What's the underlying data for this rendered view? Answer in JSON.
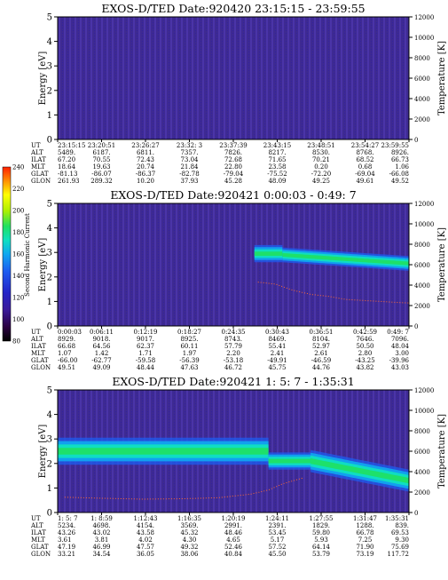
{
  "colorbar": {
    "label": "Second Harmonic Current",
    "ticks": [
      "240",
      "220",
      "200",
      "180",
      "160",
      "140",
      "120",
      "100",
      "80"
    ],
    "colors": [
      "#000000",
      "#2a0040",
      "#3a1a9a",
      "#2424c8",
      "#1e5cf0",
      "#10a8f0",
      "#10e0c0",
      "#20e060",
      "#b0f000",
      "#ffff00",
      "#ff9000",
      "#ff2000"
    ]
  },
  "row_labels": [
    "UT",
    "ALT",
    "ILAT",
    "MLT",
    "GLAT",
    "GLON"
  ],
  "chart_data": [
    {
      "type": "heatmap",
      "title": "EXOS-D/TED   Date:920420  23:15:15 - 23:59:55",
      "ylabel": "Energy [eV]",
      "y2label": "Temperature [K]",
      "ylim": [
        0,
        5
      ],
      "y2lim": [
        0,
        12000
      ],
      "yticks": [
        "0",
        "1",
        "2",
        "3",
        "4",
        "5"
      ],
      "y2ticks": [
        "0",
        "2000",
        "4000",
        "6000",
        "8000",
        "10000",
        "12000"
      ],
      "legend_row": [
        "GLAT",
        "GLON"
      ],
      "ut": [
        "23:15:15",
        "23:20:51",
        "23:26:27",
        "23:32: 3",
        "23:37:39",
        "23:43:15",
        "23:48:51",
        "23:54:27",
        "23:59:55"
      ],
      "alt": [
        "5489.",
        "6187.",
        "6811.",
        "7357.",
        "7826.",
        "8217.",
        "8530.",
        "8768.",
        "8926."
      ],
      "ilat": [
        "67.20",
        "70.55",
        "72.43",
        "73.04",
        "72.68",
        "71.65",
        "70.21",
        "68.52",
        "66.73"
      ],
      "mlt": [
        "18.64",
        "19.63",
        "20.74",
        "21.84",
        "22.80",
        "23.58",
        "0.20",
        "0.68",
        "1.06"
      ],
      "glat": [
        "-81.13",
        "-86.07",
        "-86.37",
        "-82.78",
        "-79.04",
        "-75.52",
        "-72.20",
        "-69.04",
        "-66.08"
      ],
      "glon": [
        "261.93",
        "289.32",
        "10.20",
        "37.93",
        "45.28",
        "48.09",
        "49.25",
        "49.61",
        "49.52"
      ],
      "bands": [],
      "temperature": []
    },
    {
      "type": "heatmap",
      "title": "EXOS-D/TED   Date:920421  0:00:03 - 0:49: 7",
      "ylabel": "Energy [eV]",
      "y2label": "Temperature [K]",
      "ylim": [
        0,
        5
      ],
      "y2lim": [
        0,
        12000
      ],
      "yticks": [
        "0",
        "1",
        "2",
        "3",
        "4",
        "5"
      ],
      "y2ticks": [
        "0",
        "2000",
        "4000",
        "6000",
        "8000",
        "10000",
        "12000"
      ],
      "ut": [
        "0:00:03",
        "0:06:11",
        "0:12:19",
        "0:18:27",
        "0:24:35",
        "0:30:43",
        "0:36:51",
        "0:42:59",
        "0:49: 7"
      ],
      "alt": [
        "8929.",
        "9018.",
        "9017.",
        "8925.",
        "8743.",
        "8469.",
        "8104.",
        "7646.",
        "7096."
      ],
      "ilat": [
        "66.68",
        "64.56",
        "62.37",
        "60.11",
        "57.79",
        "55.41",
        "52.97",
        "50.50",
        "48.04"
      ],
      "mlt": [
        "1.07",
        "1.42",
        "1.71",
        "1.97",
        "2.20",
        "2.41",
        "2.61",
        "2.80",
        "3.00"
      ],
      "glat": [
        "-66.00",
        "-62.77",
        "-59.58",
        "-56.39",
        "-53.18",
        "-49.91",
        "-46.59",
        "-43.25",
        "-39.96"
      ],
      "glon": [
        "49.51",
        "49.09",
        "48.44",
        "47.63",
        "46.72",
        "45.75",
        "44.76",
        "43.82",
        "43.03"
      ],
      "bands": [
        {
          "t0": 0.56,
          "t1": 0.64,
          "ecenter": 2.95,
          "ewidth": 0.35
        },
        {
          "t0": 0.64,
          "t1": 1.0,
          "ecenter": [
            2.9,
            2.55
          ],
          "ewidth": 0.3
        }
      ],
      "temperature": [
        [
          0.57,
          4300
        ],
        [
          0.62,
          4100
        ],
        [
          0.67,
          3500
        ],
        [
          0.72,
          3100
        ],
        [
          0.77,
          2900
        ],
        [
          0.82,
          2600
        ],
        [
          0.87,
          2500
        ],
        [
          0.92,
          2400
        ],
        [
          0.97,
          2300
        ],
        [
          1.0,
          2250
        ]
      ]
    },
    {
      "type": "heatmap",
      "title": "EXOS-D/TED   Date:920421  1: 5: 7 - 1:35:31",
      "ylabel": "Energy [eV]",
      "y2label": "Temperature [K]",
      "ylim": [
        0,
        5
      ],
      "y2lim": [
        0,
        12000
      ],
      "yticks": [
        "0",
        "1",
        "2",
        "3",
        "4",
        "5"
      ],
      "y2ticks": [
        "0",
        "2000",
        "4000",
        "6000",
        "8000",
        "10000",
        "12000"
      ],
      "ut": [
        "1: 5: 7",
        "1: 8:59",
        "1:12:43",
        "1:16:35",
        "1:20:19",
        "1:24:11",
        "1:27:55",
        "1:31:47",
        "1:35:31"
      ],
      "alt": [
        "5234.",
        "4698.",
        "4154.",
        "3569.",
        "2991.",
        "2391.",
        "1829.",
        "1288.",
        "839."
      ],
      "ilat": [
        "43.26",
        "43.02",
        "43.58",
        "45.32",
        "48.46",
        "53.45",
        "59.80",
        "66.78",
        "69.53"
      ],
      "mlt": [
        "3.61",
        "3.81",
        "4.02",
        "4.30",
        "4.65",
        "5.17",
        "5.93",
        "7.25",
        "9.30"
      ],
      "glat": [
        "47.19",
        "46.99",
        "47.57",
        "49.32",
        "52.46",
        "57.52",
        "64.14",
        "71.90",
        "75.69"
      ],
      "glon": [
        "33.21",
        "34.54",
        "36.05",
        "38.06",
        "40.84",
        "45.50",
        "53.79",
        "73.19",
        "117.72"
      ],
      "bands": [
        {
          "t0": 0.0,
          "t1": 0.6,
          "ecenter": 2.5,
          "ewidth": 0.55
        },
        {
          "t0": 0.6,
          "t1": 0.72,
          "ecenter": 2.1,
          "ewidth": 0.35
        },
        {
          "t0": 0.72,
          "t1": 1.0,
          "ecenter": [
            2.1,
            1.3
          ],
          "ewidth": 0.45
        }
      ],
      "temperature": [
        [
          0.02,
          1500
        ],
        [
          0.12,
          1400
        ],
        [
          0.24,
          1300
        ],
        [
          0.36,
          1350
        ],
        [
          0.46,
          1450
        ],
        [
          0.55,
          1800
        ],
        [
          0.6,
          2200
        ],
        [
          0.64,
          2800
        ],
        [
          0.7,
          3400
        ]
      ]
    }
  ]
}
